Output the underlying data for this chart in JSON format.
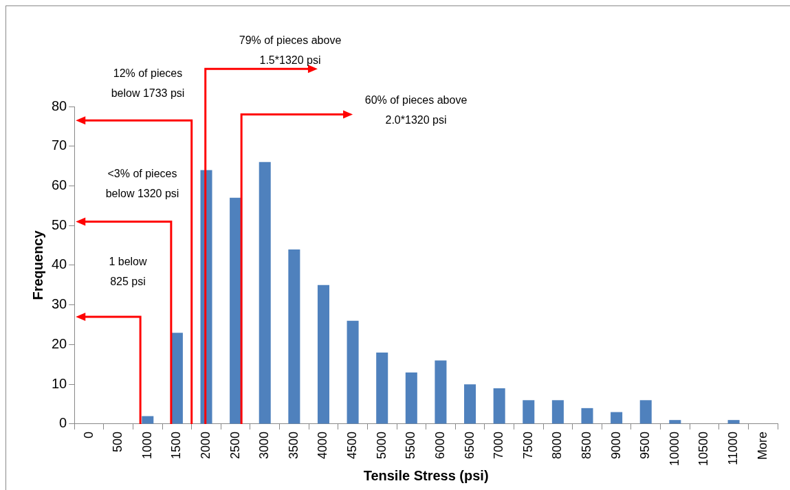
{
  "chart_data": {
    "type": "bar",
    "xlabel": "Tensile Stress (psi)",
    "ylabel": "Frequency",
    "categories": [
      "0",
      "500",
      "1000",
      "1500",
      "2000",
      "2500",
      "3000",
      "3500",
      "4000",
      "4500",
      "5000",
      "5500",
      "6000",
      "6500",
      "7000",
      "7500",
      "8000",
      "8500",
      "9000",
      "9500",
      "10000",
      "10500",
      "11000",
      "More"
    ],
    "values": [
      0,
      0,
      2,
      23,
      64,
      57,
      66,
      44,
      35,
      26,
      18,
      13,
      16,
      10,
      9,
      6,
      6,
      4,
      3,
      6,
      1,
      0,
      1,
      0
    ],
    "color": "#4f81bd",
    "ylim": [
      0,
      80
    ],
    "yticks": [
      0,
      10,
      20,
      30,
      40,
      50,
      60,
      70,
      80
    ],
    "annotations": [
      "1 below\n825 psi",
      "<3% of pieces\nbelow 1320 psi",
      "12% of pieces\nbelow 1733 psi",
      "79% of pieces above\n1.5*1320 psi",
      "60% of pieces above\n2.0*1320 psi"
    ]
  }
}
